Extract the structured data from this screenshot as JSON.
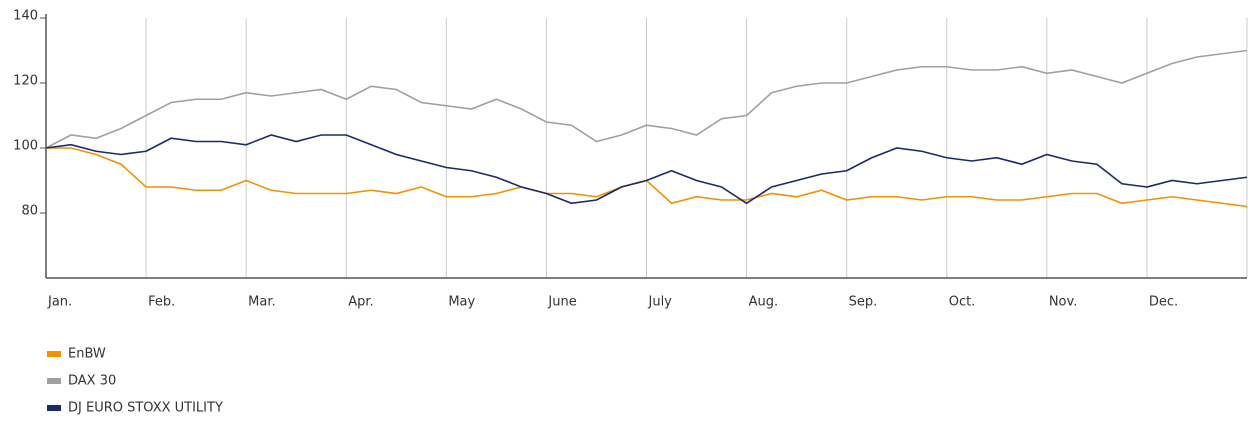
{
  "chart_data": {
    "type": "line",
    "categories": [
      "Jan.",
      null,
      null,
      null,
      "Feb.",
      null,
      null,
      null,
      "Mar.",
      null,
      null,
      null,
      "Apr.",
      null,
      null,
      null,
      "May",
      null,
      null,
      null,
      "June",
      null,
      null,
      null,
      "July",
      null,
      null,
      null,
      "Aug.",
      null,
      null,
      null,
      "Sep.",
      null,
      null,
      null,
      "Oct.",
      null,
      null,
      null,
      "Nov.",
      null,
      null,
      null,
      "Dec.",
      null,
      null,
      null,
      null
    ],
    "series": [
      {
        "name": "EnBW",
        "color": "#f39200",
        "values": [
          100,
          100,
          98,
          95,
          88,
          88,
          87,
          87,
          90,
          87,
          86,
          86,
          86,
          87,
          86,
          88,
          85,
          85,
          86,
          88,
          86,
          86,
          85,
          88,
          90,
          83,
          85,
          84,
          84,
          86,
          85,
          87,
          84,
          85,
          85,
          84,
          85,
          85,
          84,
          84,
          85,
          86,
          86,
          83,
          84,
          85,
          84,
          83,
          82
        ]
      },
      {
        "name": "DAX 30",
        "color": "#a0a0a0",
        "values": [
          100,
          104,
          103,
          106,
          110,
          114,
          115,
          115,
          117,
          116,
          117,
          118,
          115,
          119,
          118,
          114,
          113,
          112,
          115,
          112,
          108,
          107,
          102,
          104,
          107,
          106,
          104,
          109,
          110,
          117,
          119,
          120,
          120,
          122,
          124,
          125,
          125,
          124,
          124,
          125,
          123,
          124,
          122,
          120,
          123,
          126,
          128,
          129,
          130
        ]
      },
      {
        "name": "DJ EURO STOXX UTILITY",
        "color": "#1a2a6c",
        "values": [
          100,
          101,
          99,
          98,
          99,
          103,
          102,
          102,
          101,
          104,
          102,
          104,
          104,
          101,
          98,
          96,
          94,
          93,
          91,
          88,
          86,
          83,
          84,
          88,
          90,
          93,
          90,
          88,
          83,
          88,
          90,
          92,
          93,
          97,
          100,
          99,
          97,
          96,
          97,
          95,
          98,
          96,
          95,
          89,
          88,
          90,
          89,
          90,
          91
        ]
      }
    ],
    "ylim": [
      60,
      140
    ],
    "yticks": [
      80,
      100,
      120,
      140
    ]
  }
}
